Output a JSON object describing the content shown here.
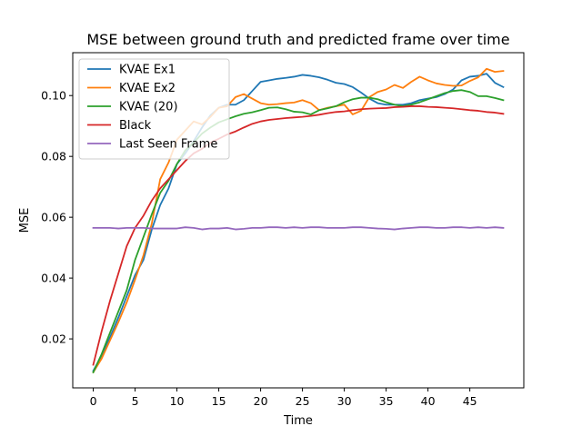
{
  "chart_data": {
    "type": "line",
    "title": "MSE between ground truth and predicted frame over time",
    "xlabel": "Time",
    "ylabel": "MSE",
    "xlim": [
      -2.45,
      51.45
    ],
    "ylim": [
      0.0039,
      0.1141
    ],
    "xticks": [
      0,
      5,
      10,
      15,
      20,
      25,
      30,
      35,
      40,
      45
    ],
    "yticks": [
      0.02,
      0.04,
      0.06,
      0.08,
      0.1
    ],
    "ytick_labels": [
      "0.02",
      "0.04",
      "0.06",
      "0.08",
      "0.10"
    ],
    "grid": false,
    "legend": "top-left",
    "x": [
      0,
      1,
      2,
      3,
      4,
      5,
      6,
      7,
      8,
      9,
      10,
      11,
      12,
      13,
      14,
      15,
      16,
      17,
      18,
      19,
      20,
      21,
      22,
      23,
      24,
      25,
      26,
      27,
      28,
      29,
      30,
      31,
      32,
      33,
      34,
      35,
      36,
      37,
      38,
      39,
      40,
      41,
      42,
      43,
      44,
      45,
      46,
      47,
      48,
      49
    ],
    "series": [
      {
        "name": "KVAE Ex1",
        "color": "#1f77b4",
        "values": [
          0.0095,
          0.0145,
          0.0205,
          0.027,
          0.034,
          0.041,
          0.046,
          0.056,
          0.064,
          0.0695,
          0.0775,
          0.081,
          0.085,
          0.0895,
          0.0935,
          0.096,
          0.097,
          0.097,
          0.0985,
          0.1015,
          0.1045,
          0.105,
          0.1055,
          0.1058,
          0.1062,
          0.1068,
          0.1065,
          0.106,
          0.1052,
          0.1042,
          0.1038,
          0.1028,
          0.101,
          0.099,
          0.0975,
          0.097,
          0.097,
          0.097,
          0.0975,
          0.0985,
          0.099,
          0.0995,
          0.1005,
          0.102,
          0.105,
          0.1062,
          0.1065,
          0.1072,
          0.1042,
          0.1028
        ]
      },
      {
        "name": "KVAE Ex2",
        "color": "#ff7f0e",
        "values": [
          0.009,
          0.0135,
          0.0195,
          0.0255,
          0.032,
          0.0395,
          0.0475,
          0.058,
          0.0725,
          0.078,
          0.0855,
          0.0885,
          0.0915,
          0.0905,
          0.093,
          0.096,
          0.0965,
          0.0995,
          0.1005,
          0.099,
          0.0975,
          0.097,
          0.0972,
          0.0975,
          0.0977,
          0.0985,
          0.0975,
          0.0952,
          0.096,
          0.0965,
          0.097,
          0.0938,
          0.095,
          0.0995,
          0.1012,
          0.102,
          0.1035,
          0.1025,
          0.1045,
          0.1062,
          0.105,
          0.104,
          0.1035,
          0.1032,
          0.1033,
          0.1048,
          0.106,
          0.1088,
          0.1078,
          0.1081
        ]
      },
      {
        "name": "KVAE (20)",
        "color": "#2ca02c",
        "values": [
          0.009,
          0.015,
          0.022,
          0.029,
          0.036,
          0.046,
          0.0535,
          0.061,
          0.068,
          0.072,
          0.0775,
          0.082,
          0.0845,
          0.0875,
          0.0895,
          0.0912,
          0.0922,
          0.0932,
          0.094,
          0.0945,
          0.0952,
          0.096,
          0.0961,
          0.0955,
          0.0947,
          0.0945,
          0.0938,
          0.0952,
          0.0958,
          0.0965,
          0.0978,
          0.0988,
          0.0993,
          0.0993,
          0.0988,
          0.0978,
          0.097,
          0.0965,
          0.097,
          0.0978,
          0.0988,
          0.0998,
          0.1008,
          0.1015,
          0.1018,
          0.1012,
          0.0998,
          0.0998,
          0.0992,
          0.0985
        ]
      },
      {
        "name": "Black",
        "color": "#d62728",
        "values": [
          0.0115,
          0.0225,
          0.0325,
          0.0415,
          0.0505,
          0.0565,
          0.0605,
          0.0655,
          0.0695,
          0.0725,
          0.0755,
          0.0785,
          0.081,
          0.0825,
          0.0845,
          0.0858,
          0.0872,
          0.0882,
          0.0895,
          0.0907,
          0.0915,
          0.092,
          0.0923,
          0.0926,
          0.0928,
          0.093,
          0.0933,
          0.0937,
          0.0942,
          0.0946,
          0.0948,
          0.0952,
          0.0955,
          0.0957,
          0.0958,
          0.0959,
          0.0962,
          0.0963,
          0.0965,
          0.0965,
          0.0963,
          0.0962,
          0.096,
          0.0958,
          0.0955,
          0.0952,
          0.095,
          0.0946,
          0.0944,
          0.094
        ]
      },
      {
        "name": "Last Seen Frame",
        "color": "#9467bd",
        "values": [
          0.0565,
          0.0565,
          0.0565,
          0.0563,
          0.0565,
          0.0565,
          0.0565,
          0.0563,
          0.0563,
          0.0563,
          0.0563,
          0.0567,
          0.0565,
          0.056,
          0.0563,
          0.0563,
          0.0565,
          0.056,
          0.0562,
          0.0565,
          0.0565,
          0.0567,
          0.0567,
          0.0565,
          0.0567,
          0.0565,
          0.0567,
          0.0567,
          0.0565,
          0.0565,
          0.0565,
          0.0567,
          0.0567,
          0.0565,
          0.0563,
          0.0562,
          0.056,
          0.0563,
          0.0565,
          0.0567,
          0.0567,
          0.0565,
          0.0565,
          0.0567,
          0.0567,
          0.0565,
          0.0567,
          0.0565,
          0.0567,
          0.0565
        ]
      }
    ]
  }
}
